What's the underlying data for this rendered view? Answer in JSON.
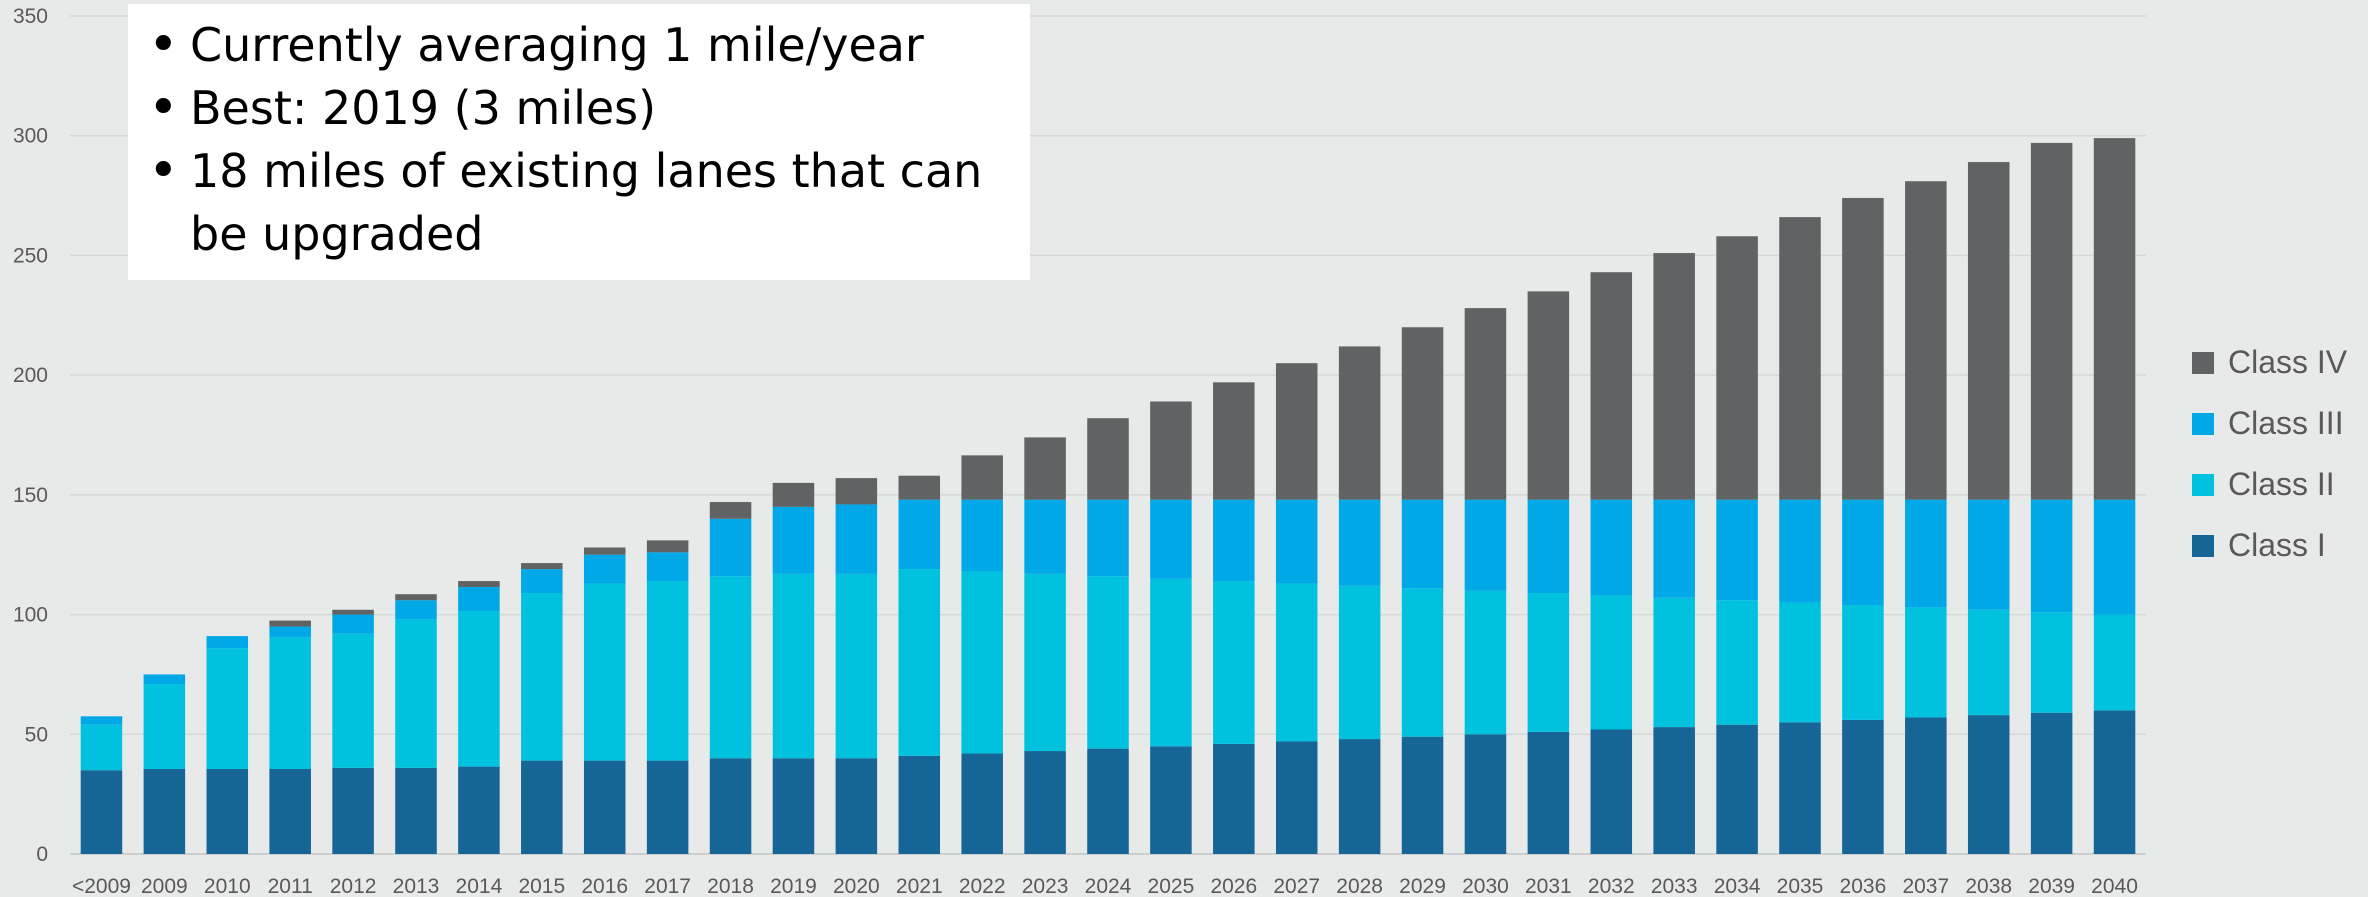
{
  "callout": {
    "bullets": [
      "Currently averaging 1 mile/year",
      "Best: 2019 (3 miles)",
      "18 miles of existing lanes that can be upgraded"
    ]
  },
  "chart_data": {
    "type": "bar",
    "stacked": true,
    "title": "",
    "xlabel": "",
    "ylabel": "",
    "ylim": [
      0,
      350
    ],
    "yticks": [
      0,
      50,
      100,
      150,
      200,
      250,
      300,
      350
    ],
    "grid": true,
    "legend_position": "right",
    "categories": [
      "<2009",
      "2009",
      "2010",
      "2011",
      "2012",
      "2013",
      "2014",
      "2015",
      "2016",
      "2017",
      "2018",
      "2019",
      "2020",
      "2021",
      "2022",
      "2023",
      "2024",
      "2025",
      "2026",
      "2027",
      "2028",
      "2029",
      "2030",
      "2031",
      "2032",
      "2033",
      "2034",
      "2035",
      "2036",
      "2037",
      "2038",
      "2039",
      "2040"
    ],
    "series": [
      {
        "name": "Class I",
        "color": "#156597",
        "values": [
          35,
          35.5,
          35.5,
          35.5,
          36,
          36,
          36.5,
          39,
          39,
          39,
          40,
          40,
          40,
          41,
          42,
          43,
          44,
          45,
          46,
          47,
          48,
          49,
          50,
          51,
          52,
          53,
          54,
          55,
          56,
          57,
          58,
          59,
          60
        ]
      },
      {
        "name": "Class II",
        "color": "#00c2de",
        "values": [
          19,
          35.5,
          50.5,
          55,
          56,
          62,
          65,
          70,
          74,
          75,
          76,
          77,
          77,
          78,
          76,
          74,
          72,
          70,
          68,
          66,
          64,
          62,
          60,
          58,
          56,
          54,
          52,
          50,
          48,
          46,
          44,
          42,
          40
        ]
      },
      {
        "name": "Class III",
        "color": "#00a8e8",
        "values": [
          3.5,
          4,
          5,
          4.5,
          8,
          8,
          10,
          10,
          12,
          12,
          24,
          28,
          29,
          29,
          30,
          31,
          32,
          33,
          34,
          35,
          36,
          37,
          38,
          39,
          40,
          41,
          42,
          43,
          44,
          45,
          46,
          47,
          48
        ]
      },
      {
        "name": "Class IV",
        "color": "#616264",
        "values": [
          0,
          0,
          0,
          2.5,
          2,
          2.5,
          2.5,
          2.5,
          3,
          5,
          7,
          10,
          11,
          10,
          18.5,
          26,
          34,
          41,
          49,
          57,
          64,
          72,
          80,
          87,
          95,
          103,
          110,
          118,
          126,
          133,
          141,
          149,
          151
        ]
      }
    ]
  }
}
